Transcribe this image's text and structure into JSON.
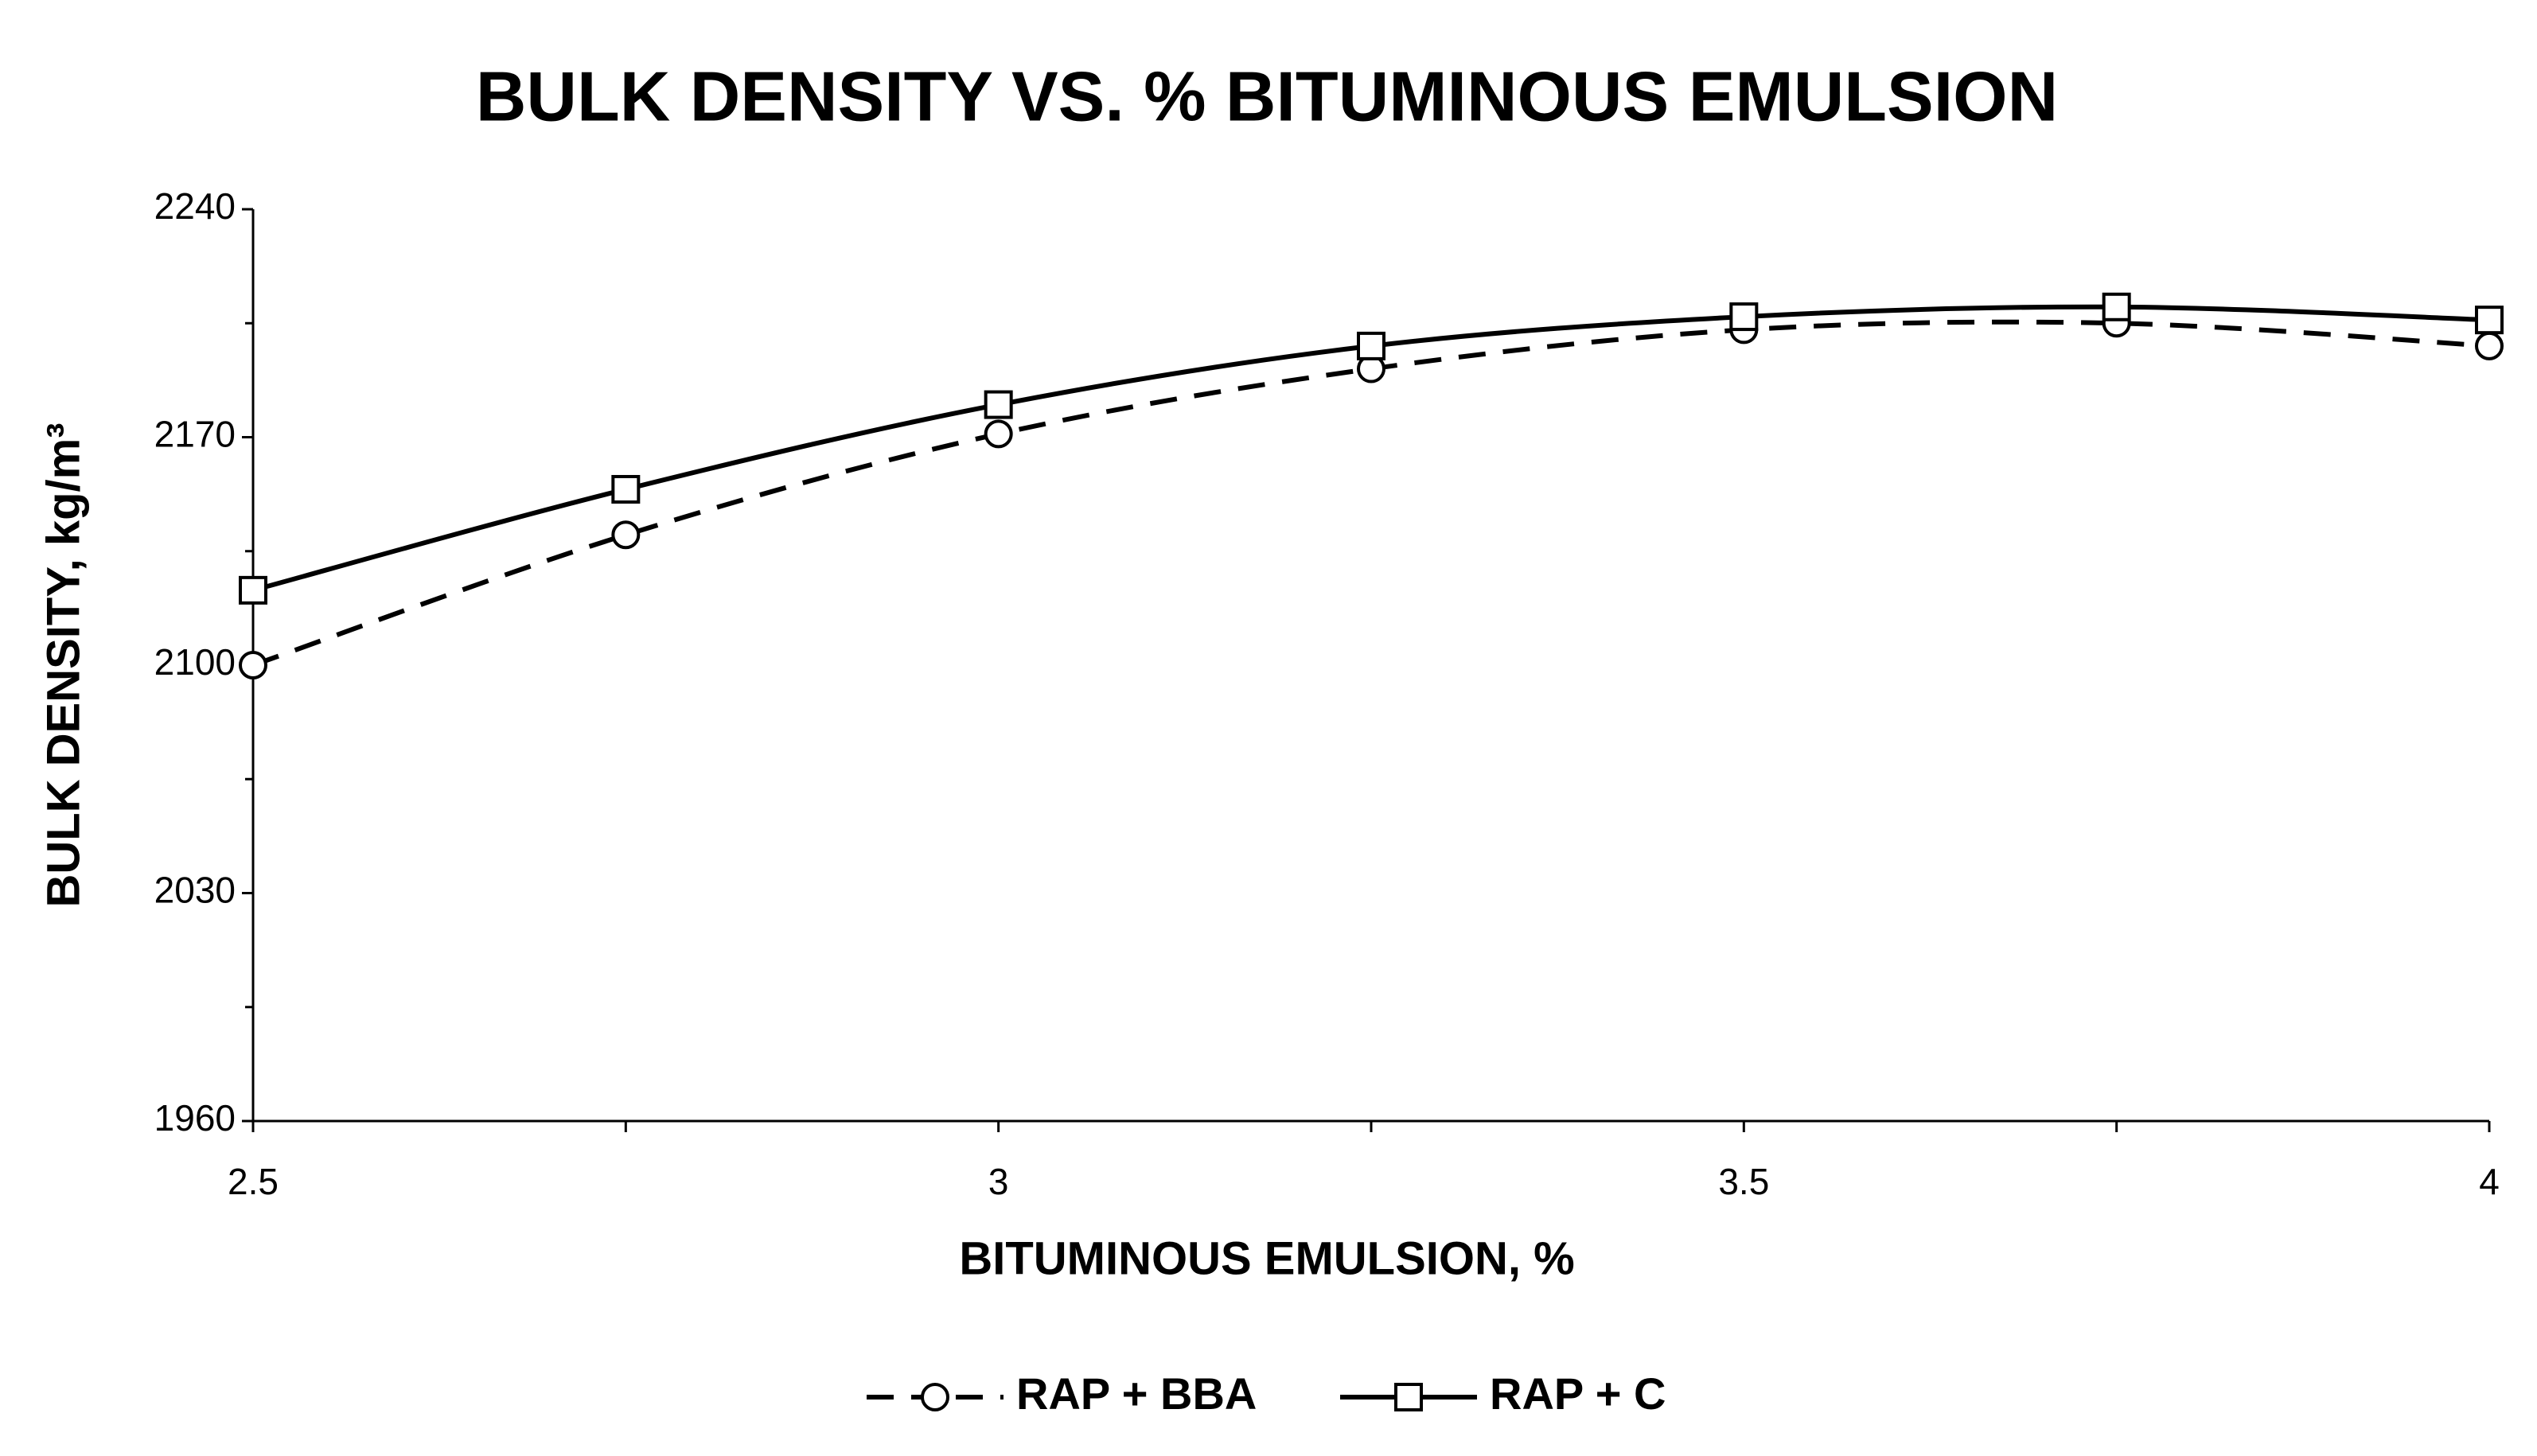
{
  "chart_data": {
    "type": "line",
    "title": "BULK DENSITY VS. % BITUMINOUS EMULSION",
    "x_label": "BITUMINOUS EMULSION, %",
    "y_label": "BULK DENSITY, kg/m³",
    "x": [
      2.5,
      2.75,
      3,
      3.25,
      3.5,
      3.75,
      4
    ],
    "series": [
      {
        "name": "RAP + BBA",
        "color": "#000000",
        "line_style": "dashed",
        "marker": "circle",
        "values": [
          2100,
          2140,
          2171,
          2191,
          2203,
          2205,
          2198
        ]
      },
      {
        "name": "RAP + C",
        "color": "#000000",
        "line_style": "solid",
        "marker": "square",
        "values": [
          2123,
          2154,
          2180,
          2198,
          2207,
          2210,
          2206
        ]
      }
    ],
    "xlim": [
      2.5,
      4
    ],
    "xticks": [
      2.5,
      3,
      3.5,
      4
    ],
    "xminor_ticks": [
      2.75,
      3.25,
      3.75
    ],
    "ylim": [
      1960,
      2240
    ],
    "yticks": [
      1960,
      2030,
      2100,
      2170,
      2240
    ],
    "yminor_ticks": [
      1995,
      2065,
      2135,
      2205
    ],
    "grid": false,
    "smooth": true,
    "legend": "bottom"
  }
}
